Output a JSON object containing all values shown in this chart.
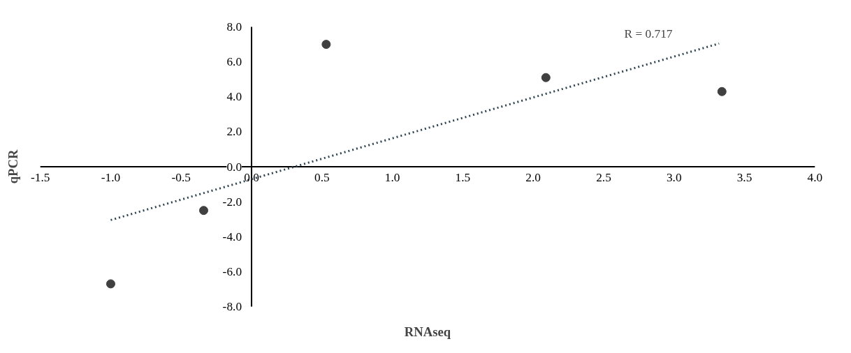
{
  "chart_data": {
    "type": "scatter",
    "xlabel": "RNAseq",
    "ylabel": "qPCR",
    "annotations": [
      "R = 0.717"
    ],
    "xlim": [
      -1.5,
      4.0
    ],
    "ylim": [
      -8,
      8
    ],
    "xticks": [
      {
        "value": -1.5,
        "label": "-1.5"
      },
      {
        "value": -1,
        "label": "-1.0"
      },
      {
        "value": -0.5,
        "label": "-0.5"
      },
      {
        "value": 0,
        "label": "0.0"
      },
      {
        "value": 0.5,
        "label": "0.5"
      },
      {
        "value": 1,
        "label": "1.0"
      },
      {
        "value": 1.5,
        "label": "1.5"
      },
      {
        "value": 2,
        "label": "2.0"
      },
      {
        "value": 2.5,
        "label": "2.5"
      },
      {
        "value": 3,
        "label": "3.0"
      },
      {
        "value": 3.5,
        "label": "3.5"
      },
      {
        "value": 4,
        "label": "4.0"
      }
    ],
    "yticks": [
      {
        "value": -8,
        "label": "-8.0"
      },
      {
        "value": -6,
        "label": "-6.0"
      },
      {
        "value": -4,
        "label": "-4.0"
      },
      {
        "value": -2,
        "label": "-2.0"
      },
      {
        "value": 0,
        "label": "0.0"
      },
      {
        "value": 2,
        "label": "2.0"
      },
      {
        "value": 4,
        "label": "4.0"
      },
      {
        "value": 6,
        "label": "6.0"
      },
      {
        "value": 8,
        "label": "8.0"
      }
    ],
    "grid": false,
    "legend": false,
    "marker": "circle",
    "series": [
      {
        "color": "#404040",
        "x": [
          -1.0,
          -0.34,
          0.53,
          2.09,
          3.34
        ],
        "values": [
          -6.7,
          -2.5,
          7.0,
          5.1,
          4.3
        ]
      },
      {
        "type": "line",
        "line_style": "dotted",
        "marker": "none",
        "color": "#2e4452",
        "x": [
          -1.0,
          3.32
        ],
        "values": [
          -3.05,
          7.05
        ]
      }
    ]
  }
}
